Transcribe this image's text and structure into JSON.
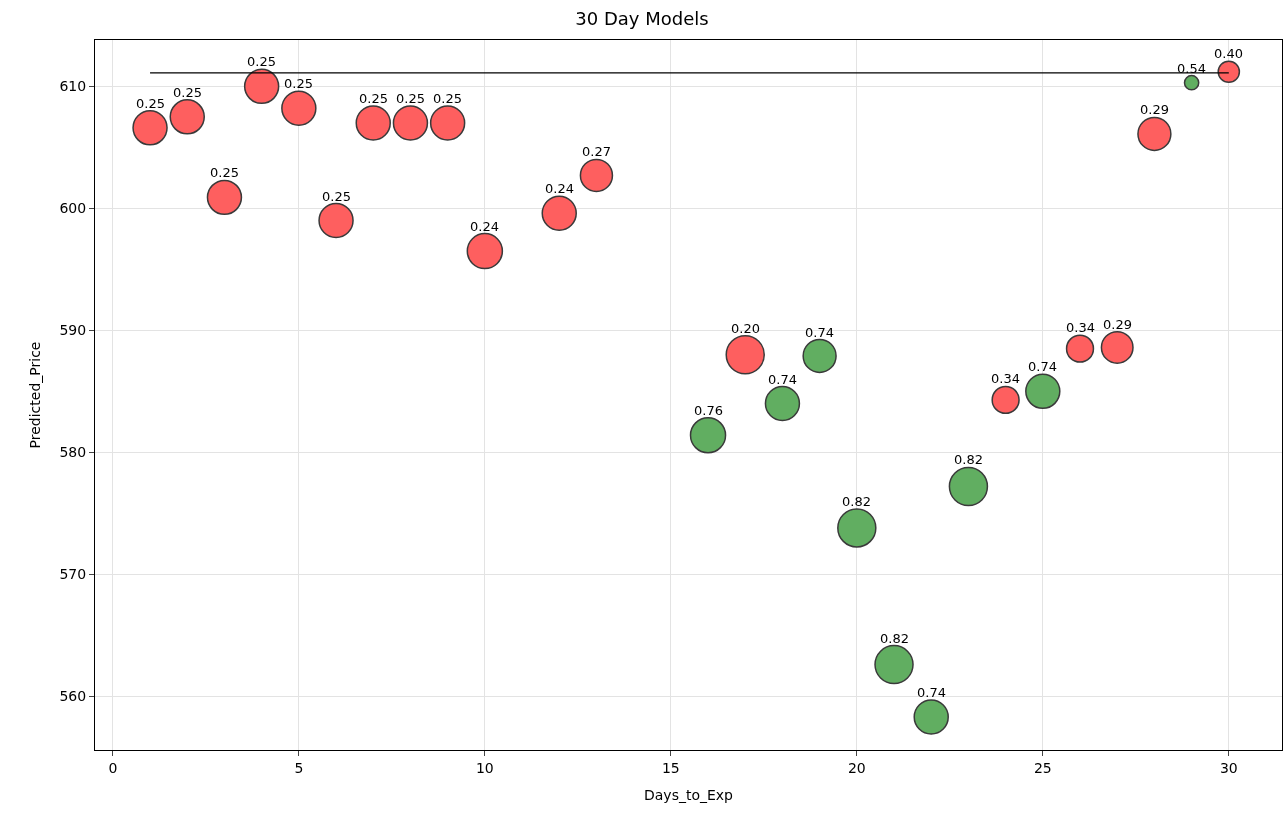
{
  "chart_data": {
    "type": "bubble",
    "title": "30 Day Models",
    "xlabel": "Days_to_Exp",
    "ylabel": "Predicted_Price",
    "xlim": [
      -0.48,
      31.43
    ],
    "xticks": [
      0,
      5,
      10,
      15,
      20,
      25,
      30
    ],
    "ylim": [
      555.6,
      613.8
    ],
    "yticks": [
      560,
      570,
      580,
      590,
      600,
      610
    ],
    "grid": true,
    "series": [
      {
        "x": [
          1,
          2,
          3,
          4,
          5,
          6,
          7,
          8,
          9,
          10,
          12,
          13,
          16,
          17,
          18,
          19,
          20,
          21,
          22,
          23,
          24,
          25,
          26,
          27,
          28,
          29,
          30
        ],
        "values": [
          606.6,
          607.5,
          600.9,
          610.0,
          608.2,
          599.0,
          607.0,
          607.0,
          607.0,
          596.5,
          599.6,
          602.7,
          581.4,
          588.0,
          584.0,
          587.9,
          573.8,
          562.6,
          558.3,
          577.2,
          584.3,
          585.0,
          588.5,
          588.6,
          606.1,
          610.3,
          611.2
        ],
        "sizes": [
          0.8,
          0.8,
          0.8,
          0.8,
          0.8,
          0.8,
          0.8,
          0.8,
          0.8,
          0.85,
          0.8,
          0.71,
          0.85,
          1,
          0.8,
          0.75,
          1,
          1,
          0.8,
          1,
          0.5,
          0.8,
          0.5,
          0.69,
          0.75,
          0.14,
          0.31
        ],
        "colors": [
          "#fe5f5f",
          "#fe5f5f",
          "#fe5f5f",
          "#fe5f5f",
          "#fe5f5f",
          "#fe5f5f",
          "#fe5f5f",
          "#fe5f5f",
          "#fe5f5f",
          "#fe5f5f",
          "#fe5f5f",
          "#fe5f5f",
          "#61ae61",
          "#fe5f5f",
          "#61ae61",
          "#61ae61",
          "#61ae61",
          "#61ae61",
          "#61ae61",
          "#61ae61",
          "#fe5f5f",
          "#61ae61",
          "#fe5f5f",
          "#fe5f5f",
          "#fe5f5f",
          "#61ae61",
          "#fe5f5f"
        ]
      },
      {
        "type": "line",
        "x": [
          1,
          30
        ],
        "values": [
          611.1,
          611.1
        ],
        "color": "#000000",
        "line_style": "solid"
      }
    ],
    "annotations": [
      {
        "text": "0.25",
        "x": 1,
        "y": 606.6
      },
      {
        "text": "0.25",
        "x": 2,
        "y": 607.5
      },
      {
        "text": "0.25",
        "x": 3,
        "y": 600.9
      },
      {
        "text": "0.25",
        "x": 4,
        "y": 610.0
      },
      {
        "text": "0.25",
        "x": 5,
        "y": 608.2
      },
      {
        "text": "0.25",
        "x": 6,
        "y": 599.0
      },
      {
        "text": "0.25",
        "x": 7,
        "y": 607.0
      },
      {
        "text": "0.25",
        "x": 8,
        "y": 607.0
      },
      {
        "text": "0.25",
        "x": 9,
        "y": 607.0
      },
      {
        "text": "0.24",
        "x": 10,
        "y": 596.5
      },
      {
        "text": "0.24",
        "x": 12,
        "y": 599.6
      },
      {
        "text": "0.27",
        "x": 13,
        "y": 602.7
      },
      {
        "text": "0.76",
        "x": 16,
        "y": 581.4
      },
      {
        "text": "0.20",
        "x": 17,
        "y": 588.0
      },
      {
        "text": "0.74",
        "x": 18,
        "y": 584.0
      },
      {
        "text": "0.74",
        "x": 19,
        "y": 587.9
      },
      {
        "text": "0.82",
        "x": 20,
        "y": 573.8
      },
      {
        "text": "0.82",
        "x": 21,
        "y": 562.6
      },
      {
        "text": "0.74",
        "x": 22,
        "y": 558.3
      },
      {
        "text": "0.82",
        "x": 23,
        "y": 577.2
      },
      {
        "text": "0.34",
        "x": 24,
        "y": 584.3
      },
      {
        "text": "0.74",
        "x": 25,
        "y": 585.0
      },
      {
        "text": "0.34",
        "x": 26,
        "y": 588.5
      },
      {
        "text": "0.29",
        "x": 27,
        "y": 588.6
      },
      {
        "text": "0.29",
        "x": 28,
        "y": 606.1
      },
      {
        "text": "0.54",
        "x": 29,
        "y": 610.3
      },
      {
        "text": "0.40",
        "x": 30,
        "y": 611.2
      }
    ]
  }
}
